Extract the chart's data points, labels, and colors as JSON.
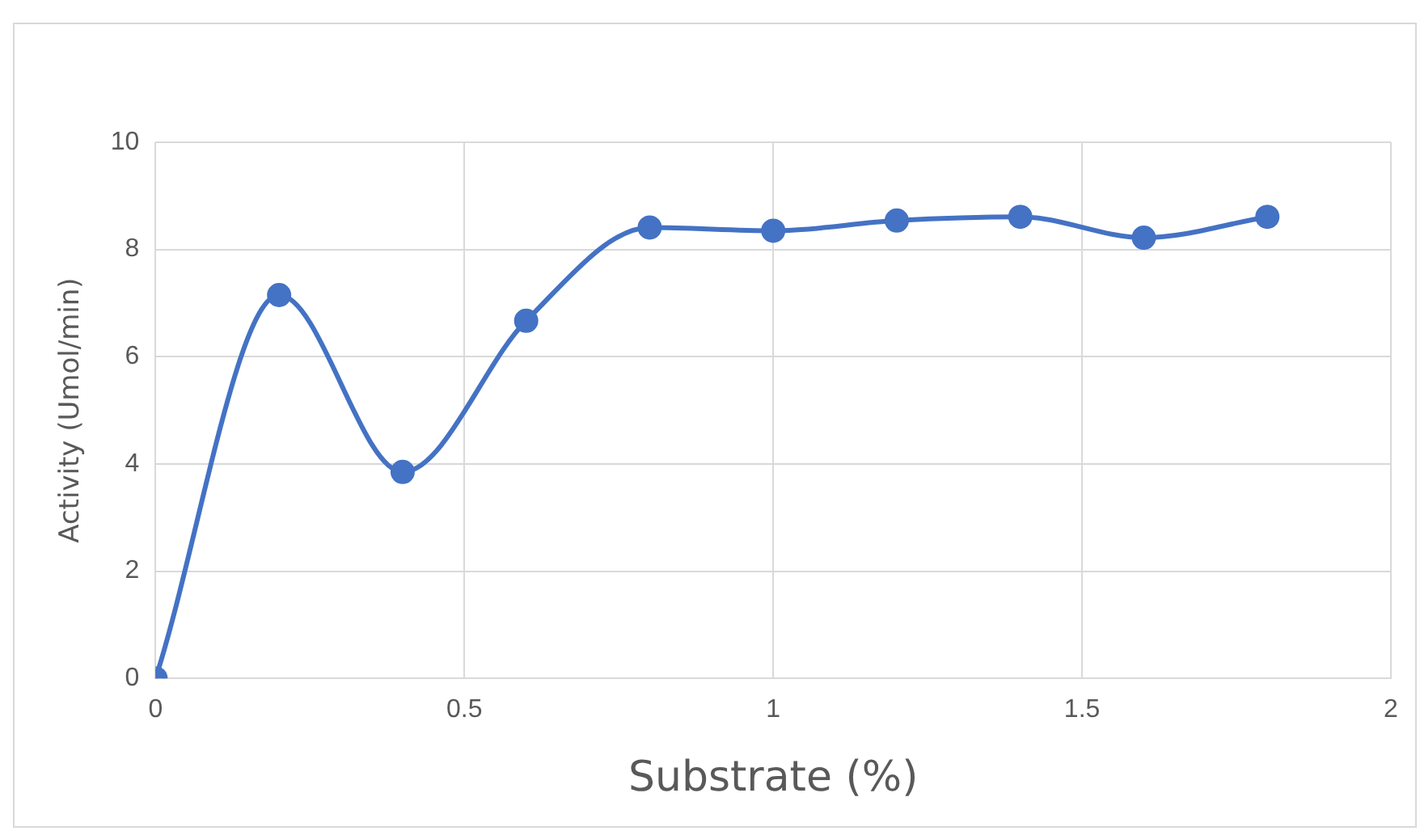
{
  "chart_data": {
    "type": "line",
    "xlabel": "Substrate (%)",
    "ylabel": "Activity (Umol/min)",
    "x": [
      0,
      0.2,
      0.4,
      0.6,
      0.8,
      1.0,
      1.2,
      1.4,
      1.6,
      1.8
    ],
    "series": [
      {
        "color": "#4472c4",
        "values": [
          0,
          7.15,
          3.85,
          6.67,
          8.41,
          8.35,
          8.54,
          8.61,
          8.22,
          8.61
        ]
      }
    ],
    "xlim": [
      0,
      2
    ],
    "xticks": [
      0,
      0.5,
      1,
      1.5,
      2
    ],
    "ylim": [
      0,
      10
    ],
    "yticks": [
      0,
      2,
      4,
      6,
      8,
      10
    ],
    "grid": true,
    "legend": false,
    "marker": "circle",
    "line_style": "solid"
  }
}
